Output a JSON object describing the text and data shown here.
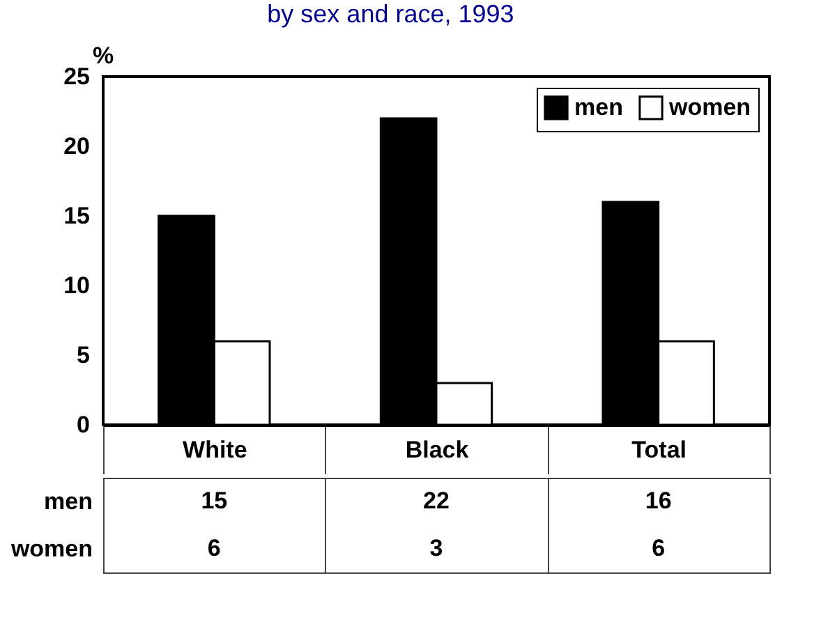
{
  "chart_data": {
    "type": "bar",
    "title": "by sex and race, 1993",
    "ylabel": "%",
    "categories": [
      "White",
      "Black",
      "Total"
    ],
    "series": [
      {
        "name": "men",
        "color": "#000000",
        "values": [
          15,
          22,
          16
        ]
      },
      {
        "name": "women",
        "color": "#ffffff",
        "values": [
          6,
          3,
          6
        ]
      }
    ],
    "ylim": [
      0,
      25
    ],
    "yticks": [
      0,
      5,
      10,
      15,
      20,
      25
    ],
    "legend": "top right",
    "data_labels": true
  }
}
